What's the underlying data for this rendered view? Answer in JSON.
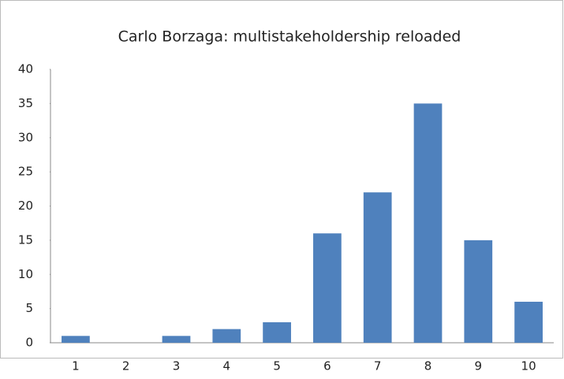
{
  "chart_data": {
    "type": "bar",
    "title": "Carlo Borzaga: multistakeholdership reloaded",
    "categories": [
      "1",
      "2",
      "3",
      "4",
      "5",
      "6",
      "7",
      "8",
      "9",
      "10"
    ],
    "values": [
      1,
      0,
      1,
      2,
      3,
      16,
      22,
      35,
      15,
      6
    ],
    "color": "#4f81bd",
    "ylim": [
      0,
      40
    ],
    "yticks": [
      0,
      5,
      10,
      15,
      20,
      25,
      30,
      35,
      40
    ],
    "grid": false
  }
}
